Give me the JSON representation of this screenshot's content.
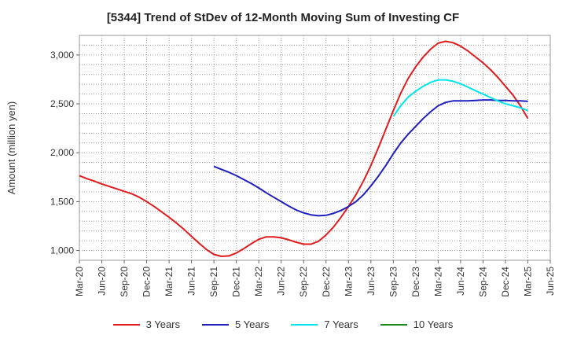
{
  "chart_data": {
    "type": "line",
    "title": "[5344]  Trend of StDev of 12-Month Moving Sum of Investing CF",
    "xlabel": "",
    "ylabel": "Amount (million yen)",
    "ylim": [
      900,
      3200
    ],
    "yticks": [
      1000,
      1500,
      2000,
      2500,
      3000
    ],
    "ytick_labels": [
      "1,000",
      "1,500",
      "2,000",
      "2,500",
      "3,000"
    ],
    "xtick_labels": [
      "Mar-20",
      "Jun-20",
      "Sep-20",
      "Dec-20",
      "Mar-21",
      "Jun-21",
      "Sep-21",
      "Dec-21",
      "Mar-22",
      "Jun-22",
      "Sep-22",
      "Dec-22",
      "Mar-23",
      "Jun-23",
      "Sep-23",
      "Dec-23",
      "Mar-24",
      "Jun-24",
      "Sep-24",
      "Dec-24",
      "Mar-25",
      "Jun-25"
    ],
    "grid": true,
    "legend_position": "bottom",
    "series": [
      {
        "name": "3 Years",
        "color": "#e31a1c",
        "points": [
          [
            "Mar-20",
            1765
          ],
          [
            "Apr-20",
            1735
          ],
          [
            "May-20",
            1710
          ],
          [
            "Jun-20",
            1680
          ],
          [
            "Jul-20",
            1655
          ],
          [
            "Aug-20",
            1630
          ],
          [
            "Sep-20",
            1605
          ],
          [
            "Oct-20",
            1580
          ],
          [
            "Nov-20",
            1545
          ],
          [
            "Dec-20",
            1500
          ],
          [
            "Jan-21",
            1450
          ],
          [
            "Feb-21",
            1395
          ],
          [
            "Mar-21",
            1340
          ],
          [
            "Apr-21",
            1280
          ],
          [
            "May-21",
            1215
          ],
          [
            "Jun-21",
            1145
          ],
          [
            "Jul-21",
            1075
          ],
          [
            "Aug-21",
            1010
          ],
          [
            "Sep-21",
            960
          ],
          [
            "Oct-21",
            940
          ],
          [
            "Nov-21",
            945
          ],
          [
            "Dec-21",
            975
          ],
          [
            "Jan-22",
            1020
          ],
          [
            "Feb-22",
            1070
          ],
          [
            "Mar-22",
            1115
          ],
          [
            "Apr-22",
            1140
          ],
          [
            "May-22",
            1140
          ],
          [
            "Jun-22",
            1130
          ],
          [
            "Jul-22",
            1110
          ],
          [
            "Aug-22",
            1085
          ],
          [
            "Sep-22",
            1065
          ],
          [
            "Oct-22",
            1065
          ],
          [
            "Nov-22",
            1095
          ],
          [
            "Dec-22",
            1160
          ],
          [
            "Jan-23",
            1240
          ],
          [
            "Feb-23",
            1340
          ],
          [
            "Mar-23",
            1450
          ],
          [
            "Apr-23",
            1570
          ],
          [
            "May-23",
            1710
          ],
          [
            "Jun-23",
            1870
          ],
          [
            "Jul-23",
            2050
          ],
          [
            "Aug-23",
            2240
          ],
          [
            "Sep-23",
            2430
          ],
          [
            "Oct-23",
            2610
          ],
          [
            "Nov-23",
            2760
          ],
          [
            "Dec-23",
            2880
          ],
          [
            "Jan-24",
            2980
          ],
          [
            "Feb-24",
            3060
          ],
          [
            "Mar-24",
            3120
          ],
          [
            "Apr-24",
            3140
          ],
          [
            "May-24",
            3125
          ],
          [
            "Jun-24",
            3090
          ],
          [
            "Jul-24",
            3040
          ],
          [
            "Aug-24",
            2980
          ],
          [
            "Sep-24",
            2920
          ],
          [
            "Oct-24",
            2850
          ],
          [
            "Nov-24",
            2770
          ],
          [
            "Dec-24",
            2680
          ],
          [
            "Jan-25",
            2590
          ],
          [
            "Feb-25",
            2480
          ],
          [
            "Mar-25",
            2350
          ]
        ]
      },
      {
        "name": "5 Years",
        "color": "#1f1fbf",
        "points": [
          [
            "Sep-21",
            1860
          ],
          [
            "Oct-21",
            1830
          ],
          [
            "Nov-21",
            1800
          ],
          [
            "Dec-21",
            1765
          ],
          [
            "Jan-22",
            1725
          ],
          [
            "Feb-22",
            1685
          ],
          [
            "Mar-22",
            1640
          ],
          [
            "Apr-22",
            1590
          ],
          [
            "May-22",
            1545
          ],
          [
            "Jun-22",
            1500
          ],
          [
            "Jul-22",
            1455
          ],
          [
            "Aug-22",
            1415
          ],
          [
            "Sep-22",
            1385
          ],
          [
            "Oct-22",
            1365
          ],
          [
            "Nov-22",
            1355
          ],
          [
            "Dec-22",
            1360
          ],
          [
            "Jan-23",
            1380
          ],
          [
            "Feb-23",
            1410
          ],
          [
            "Mar-23",
            1450
          ],
          [
            "Apr-23",
            1500
          ],
          [
            "May-23",
            1570
          ],
          [
            "Jun-23",
            1660
          ],
          [
            "Jul-23",
            1760
          ],
          [
            "Aug-23",
            1870
          ],
          [
            "Sep-23",
            1990
          ],
          [
            "Oct-23",
            2100
          ],
          [
            "Nov-23",
            2190
          ],
          [
            "Dec-23",
            2270
          ],
          [
            "Jan-24",
            2350
          ],
          [
            "Feb-24",
            2420
          ],
          [
            "Mar-24",
            2480
          ],
          [
            "Apr-24",
            2515
          ],
          [
            "May-24",
            2530
          ],
          [
            "Jun-24",
            2530
          ],
          [
            "Jul-24",
            2530
          ],
          [
            "Aug-24",
            2535
          ],
          [
            "Sep-24",
            2540
          ],
          [
            "Oct-24",
            2540
          ],
          [
            "Nov-24",
            2535
          ],
          [
            "Dec-24",
            2535
          ],
          [
            "Jan-25",
            2530
          ],
          [
            "Feb-25",
            2530
          ],
          [
            "Mar-25",
            2525
          ]
        ]
      },
      {
        "name": "7 Years",
        "color": "#00e5ee",
        "points": [
          [
            "Sep-23",
            2370
          ],
          [
            "Oct-23",
            2480
          ],
          [
            "Nov-23",
            2570
          ],
          [
            "Dec-23",
            2630
          ],
          [
            "Jan-24",
            2680
          ],
          [
            "Feb-24",
            2720
          ],
          [
            "Mar-24",
            2745
          ],
          [
            "Apr-24",
            2745
          ],
          [
            "May-24",
            2730
          ],
          [
            "Jun-24",
            2705
          ],
          [
            "Jul-24",
            2670
          ],
          [
            "Aug-24",
            2635
          ],
          [
            "Sep-24",
            2600
          ],
          [
            "Oct-24",
            2565
          ],
          [
            "Nov-24",
            2530
          ],
          [
            "Dec-24",
            2500
          ],
          [
            "Jan-25",
            2480
          ],
          [
            "Feb-25",
            2460
          ],
          [
            "Mar-25",
            2430
          ]
        ]
      },
      {
        "name": "10 Years",
        "color": "#1a8a1a",
        "points": []
      }
    ]
  }
}
